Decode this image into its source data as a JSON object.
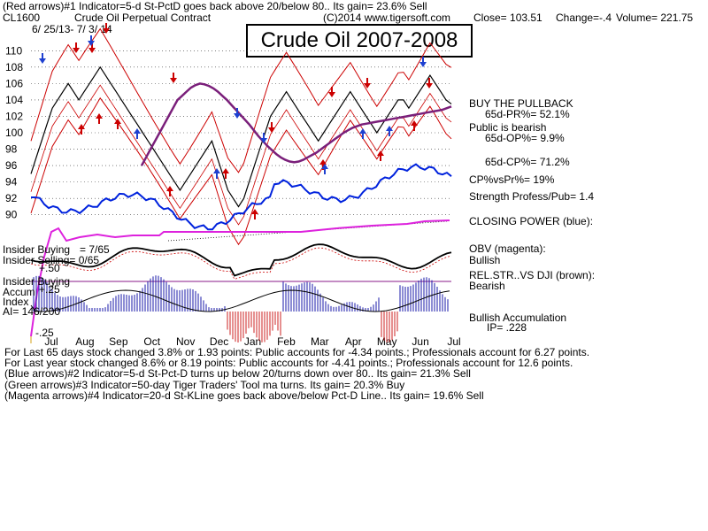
{
  "header": {
    "line1": "(Red arrows)#1 Indicator=5-d St-PctD goes back above 20/below 80.. Its gain= 23.6% Sell",
    "symbol": "CL1600",
    "contract": "Crude Oil Perpetual Contract",
    "copyright": "(C)2014 www.tigersoft.com",
    "close": "Close= 103.51",
    "change": "Change=-.4",
    "volume": "Volume= 221.75",
    "date_range": "6/ 25/13- 7/ 3/ 14"
  },
  "title_box": "Crude Oil 2007-2008",
  "right_panel": {
    "buy": "BUY THE PULLBACK",
    "pr": "65d-PR%= 52.1%",
    "public": "Public is bearish",
    "op": "65d-OP%= 9.9%",
    "cp": "65d-CP%= 71.2%",
    "cpvspr": "CP%vsPr%= 19%",
    "strength": "Strength Profess/Pub= 1.4",
    "closing_power": "CLOSING POWER (blue):",
    "obv": "OBV (magenta):",
    "obv_status": "Bullish",
    "relstr": "REL.STR..VS DJI (brown):",
    "relstr_status": "Bearish",
    "accum": "Bullish Accumulation",
    "ip": "IP= .228"
  },
  "left_labels": {
    "insider_buying1": "Insider Buying",
    "insider_buying1_val": "= 7/65",
    "insider_selling": "Insider Selling= 0/65",
    "insider_buying2": "Insider Buying",
    "accum": "Accum",
    "accum_val": "+.25",
    "index": "Index",
    "ai": "AI= 146/200",
    "plus50": "+.50",
    "minus25": "-.25"
  },
  "footer": {
    "line1": "For Last 65 days stock changed  3.8% or  1.93 points:  Public accounts for -4.34 points.;  Professionals account for  6.27 points.",
    "line2": "For Last year stock changed  8.6% or  8.19 points:  Public accounts for -4.41 points.;  Professionals account for  12.6 points.",
    "line3": "(Blue arrows)#2 Indicator=5-d St-Pct-D turns up below 20/turns down over 80.. Its gain= 21.3% Sell",
    "line4": "(Green arrows)#3 Indicator=50-day Tiger Traders' Tool ma turns. Its gain= 20.3% Buy",
    "line5": "(Magenta arrows)#4 Indicator=20-d St-KLine goes back above/below Pct-D Line.. Its gain= 19.6% Sell"
  },
  "colors": {
    "price": "#000000",
    "ma": "#7a1f7a",
    "band": "#cc0000",
    "closing_power": "#0022dd",
    "obv": "#dd22dd",
    "accum_pos": "#1a1aaa",
    "accum_neg": "#cc2222"
  },
  "chart_data": {
    "type": "line",
    "title": "Crude Oil 2007-2008",
    "x_tick_labels": [
      "Jul",
      "Aug",
      "Sep",
      "Oct",
      "Nov",
      "Dec",
      "Jan",
      "Feb",
      "Mar",
      "Apr",
      "May",
      "Jun",
      "Jul"
    ],
    "y_tick_labels": [
      110,
      108,
      106,
      104,
      102,
      100,
      98,
      96,
      94,
      92,
      90
    ],
    "ylim": [
      89,
      111
    ],
    "grid": true,
    "series": [
      {
        "values": [
          95,
          97,
          99,
          101,
          103,
          104,
          105,
          106,
          105,
          104,
          105,
          106,
          107,
          108,
          107,
          106,
          105,
          104,
          103,
          102,
          101,
          100,
          99,
          98,
          97,
          96,
          95,
          94,
          93,
          94,
          95,
          96,
          97,
          98,
          99,
          97,
          95,
          93,
          92,
          91,
          92,
          94,
          96,
          98,
          100,
          102,
          103,
          104,
          105,
          104,
          103,
          102,
          101,
          100,
          99,
          100,
          101,
          102,
          103,
          104,
          105,
          104,
          103,
          102,
          101,
          100,
          101,
          102,
          103,
          104,
          104,
          103,
          104,
          105,
          106,
          107,
          106,
          105,
          104,
          103.5
        ]
      },
      {
        "values": [
          96,
          97,
          98,
          99,
          100,
          101,
          102,
          103,
          104,
          104.5,
          105,
          105.5,
          105.8,
          106,
          105.9,
          105.7,
          105.4,
          105,
          104.5,
          104,
          103.4,
          102.8,
          102.2,
          101.6,
          101,
          100.3,
          99.6,
          99,
          98.4,
          97.9,
          97.4,
          97,
          96.7,
          96.5,
          96.4,
          96.5,
          96.7,
          97,
          97.3,
          97.6,
          98,
          98.4,
          98.8,
          99.2,
          99.6,
          100,
          100.3,
          100.6,
          100.8,
          101,
          101.1,
          101.2,
          101.3,
          101.4,
          101.5,
          101.6,
          101.7,
          101.8,
          101.9,
          102,
          102.1,
          102.2,
          102.3,
          102.4,
          102.5,
          102.6,
          102.7,
          102.8,
          103,
          103.2
        ]
      }
    ]
  }
}
